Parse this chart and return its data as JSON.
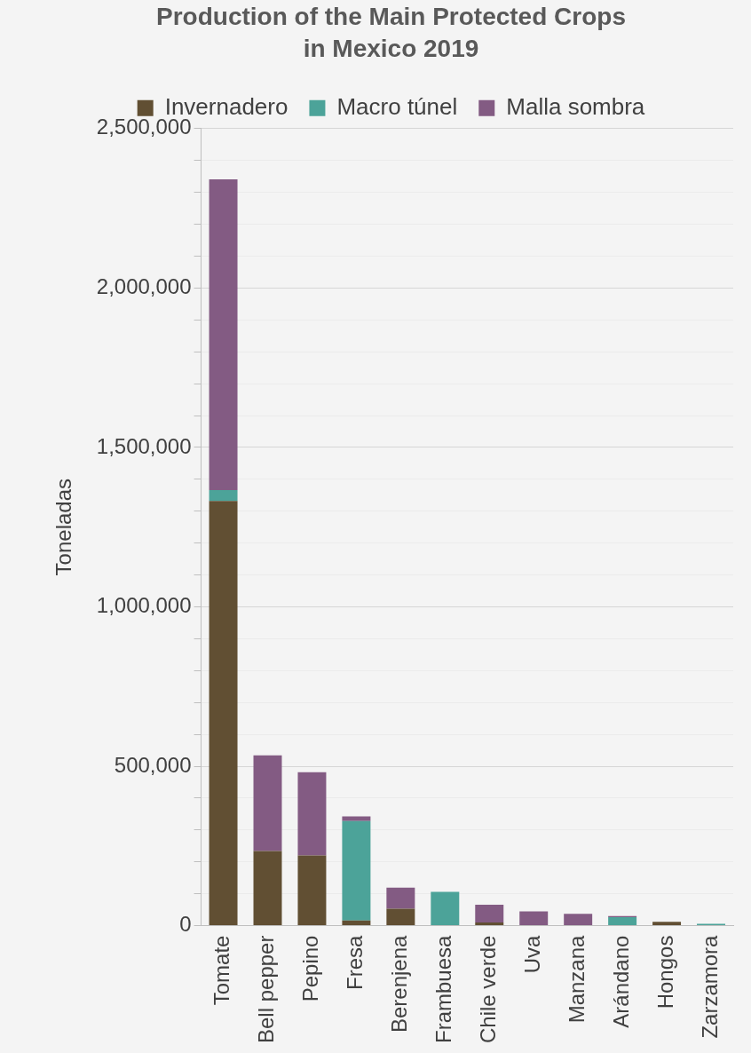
{
  "chart_data": {
    "type": "bar",
    "title": "Production of the Main Protected Crops in Mexico 2019",
    "ylabel": "Toneladas",
    "stacked": true,
    "legend": "top",
    "grid": "y",
    "categories": [
      "Tomate",
      "Bell pepper",
      "Pepino",
      "Fresa",
      "Berenjena",
      "Frambuesa",
      "Chile verde",
      "Uva",
      "Manzana",
      "Arándano",
      "Hongos",
      "Zarzamora"
    ],
    "series": [
      {
        "name": "Invernadero",
        "color": "#614f33",
        "values": [
          1332000,
          234000,
          220000,
          16000,
          53000,
          0,
          10000,
          0,
          0,
          0,
          12000,
          0
        ]
      },
      {
        "name": "Macro túnel",
        "color": "#4ca399",
        "values": [
          34000,
          0,
          0,
          312000,
          0,
          106000,
          0,
          0,
          0,
          27000,
          0,
          6000
        ]
      },
      {
        "name": "Malla sombra",
        "color": "#835b83",
        "values": [
          975000,
          300000,
          261000,
          15000,
          66000,
          0,
          56000,
          45000,
          37000,
          3000,
          0,
          0
        ]
      }
    ],
    "ylim": [
      0,
      2500000
    ],
    "yticks": [
      {
        "value": 0,
        "label": "0"
      },
      {
        "value": 100000,
        "label": null
      },
      {
        "value": 200000,
        "label": null
      },
      {
        "value": 300000,
        "label": null
      },
      {
        "value": 400000,
        "label": null
      },
      {
        "value": 500000,
        "label": "500,000"
      },
      {
        "value": 600000,
        "label": null
      },
      {
        "value": 700000,
        "label": null
      },
      {
        "value": 800000,
        "label": null
      },
      {
        "value": 900000,
        "label": null
      },
      {
        "value": 1000000,
        "label": "1,000,000"
      },
      {
        "value": 1100000,
        "label": null
      },
      {
        "value": 1200000,
        "label": null
      },
      {
        "value": 1300000,
        "label": null
      },
      {
        "value": 1400000,
        "label": null
      },
      {
        "value": 1500000,
        "label": "1,500,000"
      },
      {
        "value": 1600000,
        "label": null
      },
      {
        "value": 1700000,
        "label": null
      },
      {
        "value": 1800000,
        "label": null
      },
      {
        "value": 1900000,
        "label": null
      },
      {
        "value": 2000000,
        "label": "2,000,000"
      },
      {
        "value": 2100000,
        "label": null
      },
      {
        "value": 2200000,
        "label": null
      },
      {
        "value": 2300000,
        "label": null
      },
      {
        "value": 2400000,
        "label": null
      },
      {
        "value": 2500000,
        "label": "2,500,000"
      }
    ]
  }
}
